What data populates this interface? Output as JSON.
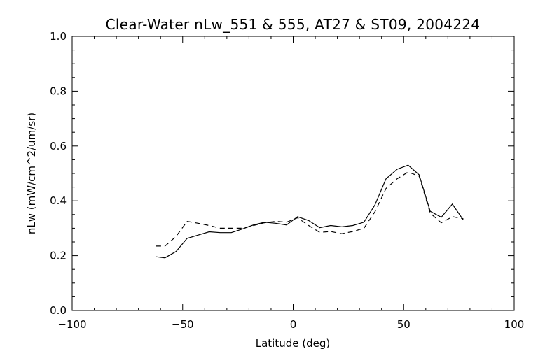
{
  "chart_data": {
    "type": "line",
    "title": "Clear-Water nLw_551 & 555, AT27 & ST09, 2004224",
    "xlabel": "Latitude (deg)",
    "ylabel": "nLw (mW/cm^2/um/sr)",
    "xlim": [
      -100,
      100
    ],
    "ylim": [
      0.0,
      1.0
    ],
    "x_ticks": [
      -100,
      -50,
      0,
      50,
      100
    ],
    "x_tick_labels": [
      "−100",
      "−50",
      "0",
      "50",
      "100"
    ],
    "y_ticks": [
      0.0,
      0.2,
      0.4,
      0.6,
      0.8,
      1.0
    ],
    "y_tick_labels": [
      "0.0",
      "0.2",
      "0.4",
      "0.6",
      "0.8",
      "1.0"
    ],
    "x_minor_step": 10,
    "y_minor_step": 0.05,
    "grid": false,
    "legend": "none",
    "series": [
      {
        "style": "solid",
        "x": [
          -62,
          -58,
          -53,
          -48,
          -43,
          -38,
          -33,
          -28,
          -23,
          -18,
          -13,
          -8,
          -3,
          2,
          7,
          12,
          17,
          22,
          27,
          32,
          37,
          42,
          47,
          52,
          57,
          62,
          67,
          72,
          77
        ],
        "y": [
          0.196,
          0.192,
          0.215,
          0.263,
          0.275,
          0.287,
          0.284,
          0.284,
          0.297,
          0.312,
          0.322,
          0.318,
          0.312,
          0.342,
          0.328,
          0.302,
          0.31,
          0.305,
          0.31,
          0.322,
          0.385,
          0.48,
          0.515,
          0.53,
          0.495,
          0.362,
          0.34,
          0.388,
          0.33
        ]
      },
      {
        "style": "dashed",
        "x": [
          -62,
          -58,
          -53,
          -48,
          -43,
          -38,
          -33,
          -28,
          -23,
          -18,
          -13,
          -8,
          -3,
          2,
          7,
          12,
          17,
          22,
          27,
          32,
          37,
          42,
          47,
          52,
          57,
          62,
          67,
          72,
          77
        ],
        "y": [
          0.235,
          0.235,
          0.27,
          0.325,
          0.318,
          0.31,
          0.3,
          0.3,
          0.3,
          0.31,
          0.32,
          0.325,
          0.322,
          0.338,
          0.31,
          0.285,
          0.288,
          0.28,
          0.288,
          0.3,
          0.36,
          0.445,
          0.48,
          0.505,
          0.49,
          0.355,
          0.32,
          0.342,
          0.335
        ]
      }
    ]
  }
}
